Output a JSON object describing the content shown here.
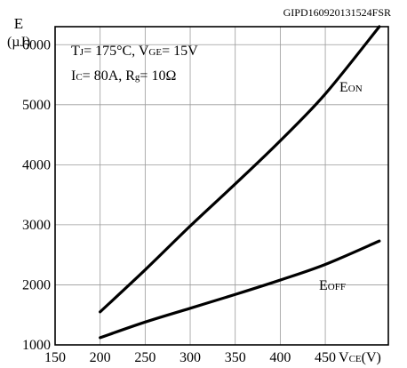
{
  "figure_id": "GIPD160920131524FSR",
  "chart_data": {
    "type": "line",
    "y_axis": {
      "unit_line1": "E",
      "unit_line2": "(µJ)"
    },
    "x_axis": {
      "label": "V",
      "label_subscript": "CE",
      "label_suffix": "(V)"
    },
    "xlim": [
      150,
      520
    ],
    "ylim": [
      1000,
      6300
    ],
    "x_ticks": [
      150,
      200,
      250,
      300,
      350,
      400,
      450
    ],
    "y_ticks": [
      1000,
      2000,
      3000,
      4000,
      5000,
      6000
    ],
    "grid": true,
    "conditions": {
      "line1": [
        {
          "text": "T",
          "sub": false
        },
        {
          "text": "J",
          "sub": true
        },
        {
          "text": "= 175°C, V",
          "sub": false
        },
        {
          "text": "GE",
          "sub": true
        },
        {
          "text": "= 15V",
          "sub": false
        }
      ],
      "line2": [
        {
          "text": "I",
          "sub": false
        },
        {
          "text": "C",
          "sub": true
        },
        {
          "text": "= 80A, R",
          "sub": false
        },
        {
          "text": "g",
          "sub": true
        },
        {
          "text": "= 10Ω",
          "sub": false
        }
      ]
    },
    "series": [
      {
        "name": "E",
        "name_subscript": "ON",
        "x": [
          200,
          250,
          300,
          350,
          400,
          450,
          510
        ],
        "y": [
          1550,
          2250,
          2980,
          3680,
          4400,
          5180,
          6300
        ]
      },
      {
        "name": "E",
        "name_subscript": "OFF",
        "x": [
          200,
          250,
          300,
          350,
          400,
          450,
          510
        ],
        "y": [
          1120,
          1380,
          1610,
          1840,
          2080,
          2340,
          2730
        ]
      }
    ]
  }
}
